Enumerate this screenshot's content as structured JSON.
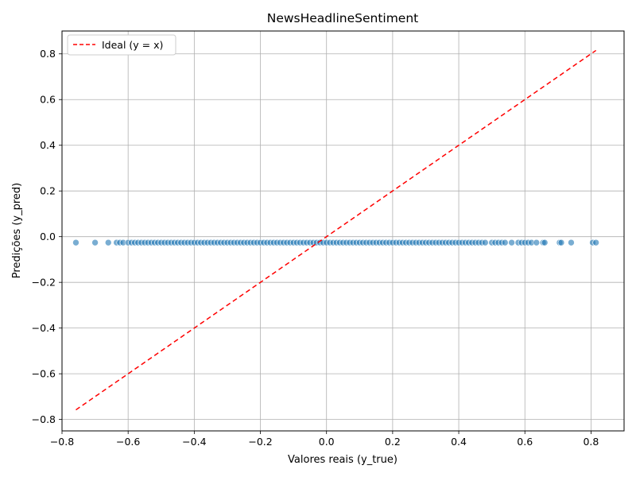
{
  "chart_data": {
    "type": "scatter",
    "title": "NewsHeadlineSentiment",
    "xlabel": "Valores reais (y_true)",
    "ylabel": "Predições (y_pred)",
    "xlim": [
      -0.8,
      0.9
    ],
    "ylim": [
      -0.85,
      0.9
    ],
    "x_ticks": [
      -0.8,
      -0.6,
      -0.4,
      -0.2,
      0.0,
      0.2,
      0.4,
      0.6,
      0.8
    ],
    "x_tick_labels": [
      "−0.8",
      "−0.6",
      "−0.4",
      "−0.2",
      "0.0",
      "0.2",
      "0.4",
      "0.6",
      "0.8"
    ],
    "y_ticks": [
      -0.8,
      -0.6,
      -0.4,
      -0.2,
      0.0,
      0.2,
      0.4,
      0.6,
      0.8
    ],
    "y_tick_labels": [
      "−0.8",
      "−0.6",
      "−0.4",
      "−0.2",
      "0.0",
      "0.2",
      "0.4",
      "0.6",
      "0.8"
    ],
    "grid": true,
    "legend_position": "top-left",
    "series": [
      {
        "kind": "scatter",
        "color": "#1f77b4",
        "y_pred_constant": -0.026,
        "x": [
          -0.758,
          -0.7,
          -0.66,
          -0.635,
          -0.625,
          -0.615,
          -0.6,
          -0.59,
          -0.58,
          -0.57,
          -0.56,
          -0.55,
          -0.54,
          -0.53,
          -0.52,
          -0.51,
          -0.5,
          -0.49,
          -0.48,
          -0.47,
          -0.46,
          -0.45,
          -0.44,
          -0.43,
          -0.42,
          -0.41,
          -0.4,
          -0.39,
          -0.38,
          -0.37,
          -0.36,
          -0.35,
          -0.34,
          -0.33,
          -0.32,
          -0.31,
          -0.3,
          -0.29,
          -0.28,
          -0.27,
          -0.26,
          -0.25,
          -0.24,
          -0.23,
          -0.22,
          -0.21,
          -0.2,
          -0.19,
          -0.18,
          -0.17,
          -0.16,
          -0.15,
          -0.14,
          -0.13,
          -0.12,
          -0.11,
          -0.1,
          -0.09,
          -0.08,
          -0.07,
          -0.06,
          -0.05,
          -0.04,
          -0.03,
          -0.02,
          -0.01,
          0.0,
          0.01,
          0.02,
          0.03,
          0.04,
          0.05,
          0.06,
          0.07,
          0.08,
          0.09,
          0.1,
          0.11,
          0.12,
          0.13,
          0.14,
          0.15,
          0.16,
          0.17,
          0.18,
          0.19,
          0.2,
          0.21,
          0.22,
          0.23,
          0.24,
          0.25,
          0.26,
          0.27,
          0.28,
          0.29,
          0.3,
          0.31,
          0.32,
          0.33,
          0.34,
          0.35,
          0.36,
          0.37,
          0.38,
          0.39,
          0.4,
          0.41,
          0.42,
          0.43,
          0.44,
          0.45,
          0.46,
          0.47,
          0.48,
          0.5,
          0.51,
          0.52,
          0.53,
          0.54,
          0.56,
          0.58,
          0.59,
          0.6,
          0.61,
          0.62,
          0.635,
          0.655,
          0.66,
          0.705,
          0.71,
          0.74,
          0.805,
          0.815
        ]
      },
      {
        "kind": "line",
        "name": "Ideal (y = x)",
        "color": "#ff0000",
        "dash": "dashed",
        "x": [
          -0.758,
          0.815
        ],
        "y": [
          -0.758,
          0.815
        ]
      }
    ]
  }
}
